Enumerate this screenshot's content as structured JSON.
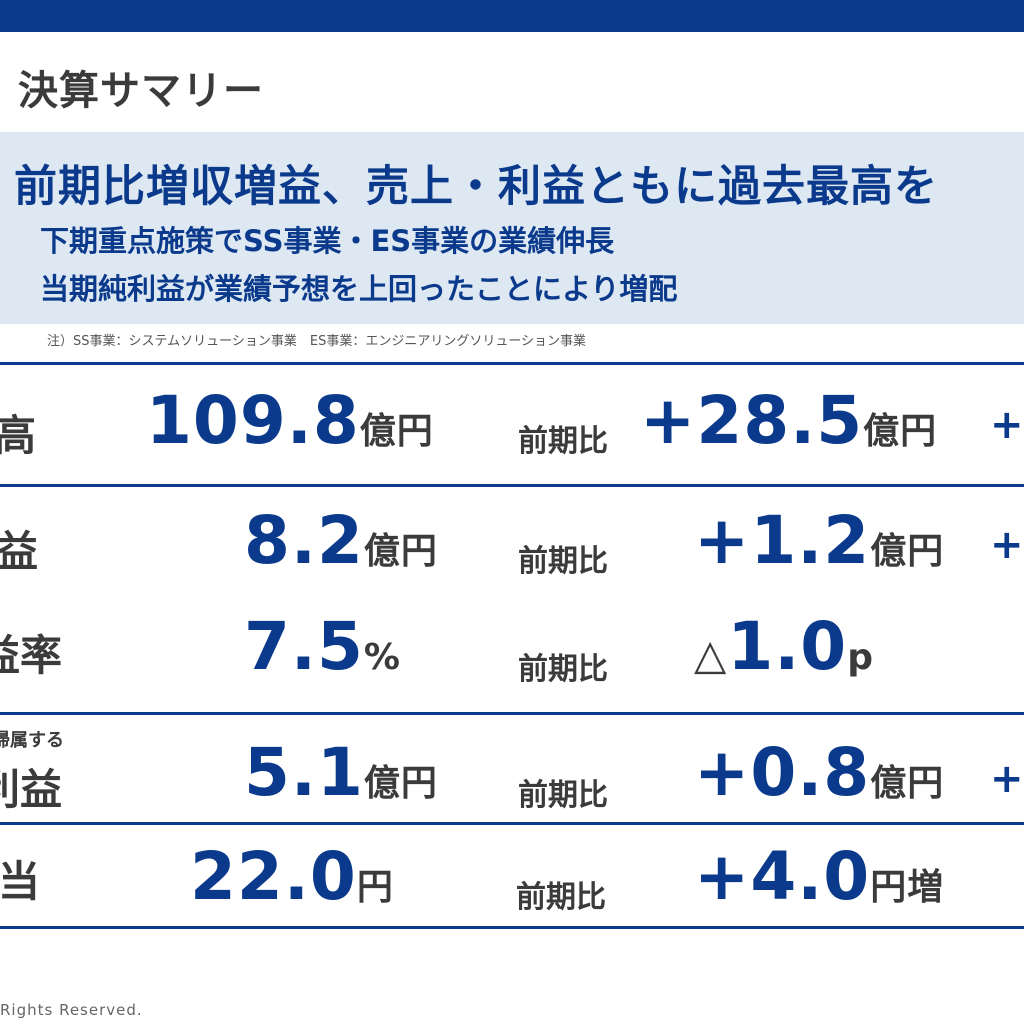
{
  "page_title": "決算サマリー",
  "banner": {
    "headline": "前期比増収増益、売上・利益ともに過去最高を",
    "sub1": "下期重点施策でSS事業・ES事業の業績伸長",
    "sub2": "当期純利益が業績予想を上回ったことにより増配"
  },
  "note": "注）SS事業：システムソリューション事業　ES事業：エンジニアリングソリューション事業",
  "metrics": [
    {
      "label": "高",
      "value": "109.8",
      "unit": "億円",
      "cmp_label": "前期比",
      "cmp_sign": "+",
      "cmp_value": "28.5",
      "cmp_unit": "億円",
      "tail": "+"
    },
    {
      "label": "益",
      "value": "8.2",
      "unit": "億円",
      "cmp_label": "前期比",
      "cmp_sign": "+",
      "cmp_value": "1.2",
      "cmp_unit": "億円",
      "tail": "+"
    },
    {
      "label": "益率",
      "value": "7.5",
      "unit": "%",
      "cmp_label": "前期比",
      "cmp_sign": "△",
      "cmp_value": "1.0",
      "cmp_unit": "p",
      "tail": ""
    },
    {
      "label_small": "帰属する",
      "label": "利益",
      "value": "5.1",
      "unit": "億円",
      "cmp_label": "前期比",
      "cmp_sign": "+",
      "cmp_value": "0.8",
      "cmp_unit": "億円",
      "tail": "+"
    },
    {
      "label": "当",
      "value": "22.0",
      "unit": "円",
      "cmp_label": "前期比",
      "cmp_sign": "+",
      "cmp_value": "4.0",
      "cmp_unit": "円増",
      "tail": ""
    }
  ],
  "copyright": "Rights  Reserved.",
  "colors": {
    "brand": "#0b3a8c",
    "banner_bg": "#dde8f2"
  }
}
